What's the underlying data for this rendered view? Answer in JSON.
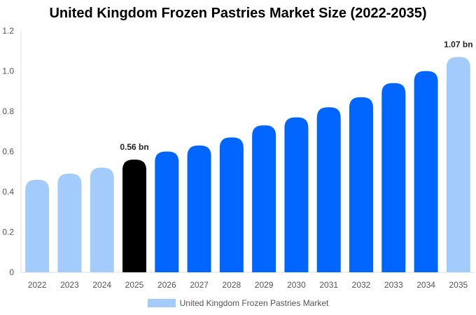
{
  "chart_data": {
    "type": "bar",
    "title": "United Kingdom Frozen Pastries Market Size (2022-2035)",
    "categories": [
      "2022",
      "2023",
      "2024",
      "2025",
      "2026",
      "2027",
      "2028",
      "2029",
      "2030",
      "2031",
      "2032",
      "2033",
      "2034",
      "2035"
    ],
    "series": [
      {
        "name": "United Kingdom Frozen Pastries Market",
        "values": [
          0.46,
          0.49,
          0.52,
          0.56,
          0.6,
          0.63,
          0.67,
          0.73,
          0.77,
          0.82,
          0.87,
          0.94,
          1.0,
          1.07
        ]
      }
    ],
    "bar_colors": [
      "#a3ccfc",
      "#a3ccfc",
      "#a3ccfc",
      "#000000",
      "#0066ff",
      "#0066ff",
      "#0066ff",
      "#0066ff",
      "#0066ff",
      "#0066ff",
      "#0066ff",
      "#0066ff",
      "#0066ff",
      "#a3ccfc"
    ],
    "data_labels": [
      {
        "index": 3,
        "text": "0.56 bn"
      },
      {
        "index": 13,
        "text": "1.07 bn"
      }
    ],
    "ylim": [
      0,
      1.2
    ],
    "yticks": [
      "0",
      "0.2",
      "0.4",
      "0.6",
      "0.8",
      "1.0",
      "1.2"
    ],
    "xlabel": "",
    "ylabel": "",
    "grid": false,
    "legend_position": "bottom",
    "legend_color": "#a3ccfc",
    "axis_color": "#dddddd"
  }
}
